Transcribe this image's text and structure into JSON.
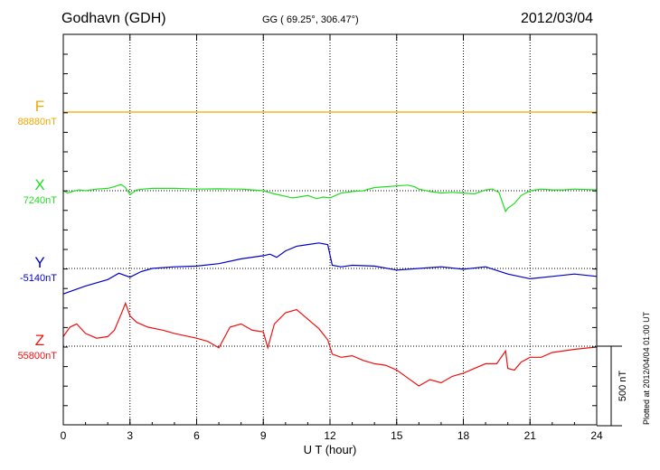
{
  "header": {
    "station": "Godhavn (GDH)",
    "coords": "GG ( 69.25°, 306.47°)",
    "date": "2012/03/04",
    "plotted": "Plotted at 2012/04/04 01:00 UT"
  },
  "chart_data": {
    "type": "line",
    "xlabel": "U T (hour)",
    "xlim": [
      0,
      24
    ],
    "xticks": [
      0,
      3,
      6,
      9,
      12,
      15,
      18,
      21,
      24
    ],
    "scale_bar": "500 nT",
    "scale_nT": 500,
    "grid": true,
    "series": [
      {
        "name": "F",
        "baseline_label": "88880nT",
        "color": "#f0a800",
        "x": [
          0,
          3,
          6,
          9,
          12,
          15,
          18,
          21,
          24
        ],
        "y": [
          0,
          0,
          0,
          0,
          0,
          0,
          0,
          0,
          0
        ]
      },
      {
        "name": "X",
        "baseline_label": "7240nT",
        "color": "#22dd22",
        "x": [
          0,
          0.2,
          0.4,
          0.7,
          1,
          1.5,
          2,
          2.3,
          2.6,
          2.8,
          3,
          3.3,
          3.6,
          4,
          5,
          6,
          7,
          8,
          8.5,
          9,
          9.5,
          10,
          10.3,
          10.6,
          11,
          11.4,
          11.7,
          12,
          12.5,
          13,
          13.5,
          14,
          14.5,
          15,
          15.5,
          15.8,
          16,
          16.5,
          17,
          17.5,
          18,
          18.5,
          19,
          19.3,
          19.6,
          19.9,
          20,
          20.3,
          20.6,
          21,
          21.5,
          22,
          22.5,
          23,
          24
        ],
        "y": [
          0,
          -15,
          -5,
          5,
          0,
          10,
          15,
          25,
          40,
          20,
          -25,
          5,
          10,
          15,
          15,
          10,
          12,
          10,
          5,
          0,
          -20,
          -35,
          -45,
          -40,
          -30,
          -50,
          -40,
          -45,
          -15,
          -5,
          0,
          20,
          25,
          30,
          35,
          25,
          10,
          -5,
          -15,
          -10,
          -15,
          -20,
          5,
          10,
          -10,
          -130,
          -110,
          -80,
          -30,
          0,
          10,
          5,
          5,
          10,
          5
        ]
      },
      {
        "name": "Y",
        "baseline_label": "-5140nT",
        "color": "#0000cc",
        "x": [
          0,
          1,
          2,
          2.5,
          3,
          3.5,
          4,
          5,
          6,
          7,
          8,
          9,
          9.3,
          9.6,
          10,
          10.5,
          11,
          11.5,
          11.9,
          12.1,
          12.5,
          13,
          14,
          15,
          16,
          17,
          18,
          19,
          20,
          21,
          22,
          23,
          24
        ],
        "y": [
          -160,
          -110,
          -70,
          -30,
          -55,
          -20,
          0,
          10,
          15,
          30,
          60,
          80,
          90,
          70,
          110,
          140,
          150,
          160,
          150,
          20,
          10,
          20,
          15,
          -10,
          0,
          10,
          -5,
          10,
          -35,
          -65,
          -50,
          -35,
          -50
        ]
      },
      {
        "name": "Z",
        "baseline_label": "55800nT",
        "color": "#ee1111",
        "x": [
          0,
          0.3,
          0.6,
          1,
          1.5,
          2,
          2.3,
          2.6,
          2.8,
          3,
          3.3,
          3.8,
          4.5,
          5,
          6,
          6.5,
          7,
          7.5,
          8,
          8.5,
          9,
          9.2,
          9.5,
          10,
          10.5,
          11,
          11.5,
          11.9,
          12.1,
          12.5,
          13,
          13.5,
          14,
          14.5,
          15,
          15.5,
          16,
          16.5,
          17,
          17.5,
          18,
          18.5,
          19,
          19.5,
          19.9,
          20,
          20.3,
          20.6,
          21,
          21.5,
          22,
          23,
          24
        ],
        "y": [
          60,
          120,
          140,
          80,
          50,
          60,
          100,
          200,
          270,
          190,
          150,
          120,
          100,
          80,
          50,
          30,
          -10,
          120,
          140,
          100,
          90,
          -10,
          140,
          210,
          230,
          170,
          110,
          40,
          -50,
          -70,
          -60,
          -90,
          -110,
          -120,
          -150,
          -200,
          -250,
          -210,
          -230,
          -190,
          -170,
          -140,
          -110,
          -110,
          -30,
          -140,
          -150,
          -100,
          -70,
          -70,
          -40,
          -20,
          -5
        ]
      }
    ]
  }
}
